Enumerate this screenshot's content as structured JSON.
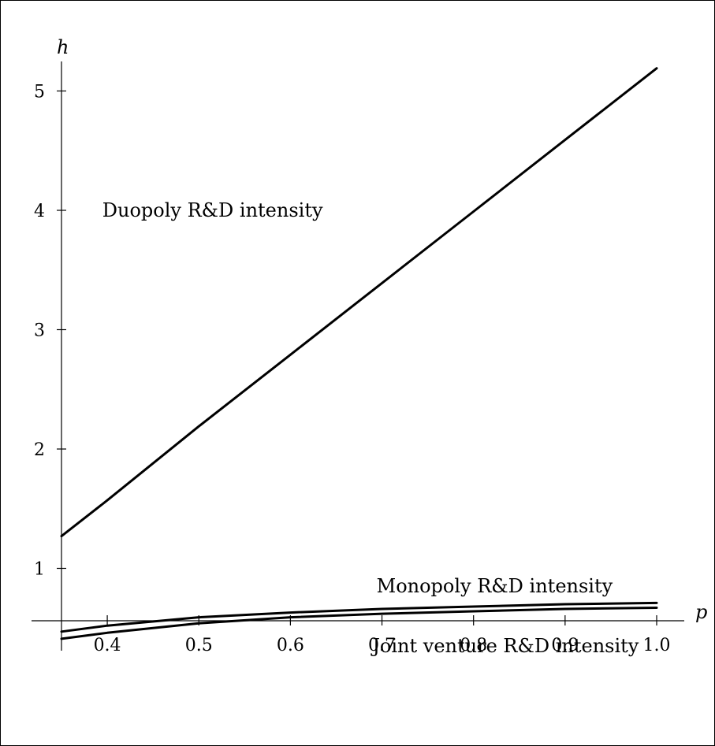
{
  "chart_data": {
    "type": "line",
    "xlabel": "p",
    "ylabel": "h",
    "xlim": [
      0.35,
      1.0
    ],
    "ylim": [
      0,
      5.2
    ],
    "x_ticks": [
      "0.4",
      "0.5",
      "0.6",
      "0.7",
      "0.8",
      "0.9",
      "1.0"
    ],
    "x_tick_values": [
      0.4,
      0.5,
      0.6,
      0.7,
      0.8,
      0.9,
      1.0
    ],
    "y_ticks": [
      "1",
      "2",
      "3",
      "4",
      "5"
    ],
    "y_tick_values": [
      1,
      2,
      3,
      4,
      5
    ],
    "grid": false,
    "series": [
      {
        "name": "Duopoly R&D intensity",
        "x": [
          0.35,
          0.4,
          0.5,
          0.6,
          0.7,
          0.8,
          0.9,
          1.0
        ],
        "values": [
          1.27,
          1.57,
          2.19,
          2.79,
          3.39,
          3.99,
          4.59,
          5.19
        ]
      },
      {
        "name": "Monopoly R&D intensity",
        "x": [
          0.35,
          0.4,
          0.5,
          0.6,
          0.7,
          0.8,
          0.9,
          1.0
        ],
        "values": [
          0.47,
          0.52,
          0.59,
          0.63,
          0.66,
          0.68,
          0.7,
          0.71
        ]
      },
      {
        "name": "Joint venture R&D intensity",
        "x": [
          0.35,
          0.4,
          0.5,
          0.6,
          0.7,
          0.8,
          0.9,
          1.0
        ],
        "values": [
          0.41,
          0.46,
          0.54,
          0.59,
          0.62,
          0.64,
          0.66,
          0.67
        ]
      }
    ],
    "annotations": [
      {
        "text": "Duopoly R&D intensity",
        "x": 0.515,
        "y": 4.0
      },
      {
        "text": "Monopoly R&D intensity",
        "x": 0.823,
        "y": 0.85
      },
      {
        "text": "Joint venture R&D intensity",
        "x": 0.835,
        "y": 0.35
      }
    ]
  }
}
